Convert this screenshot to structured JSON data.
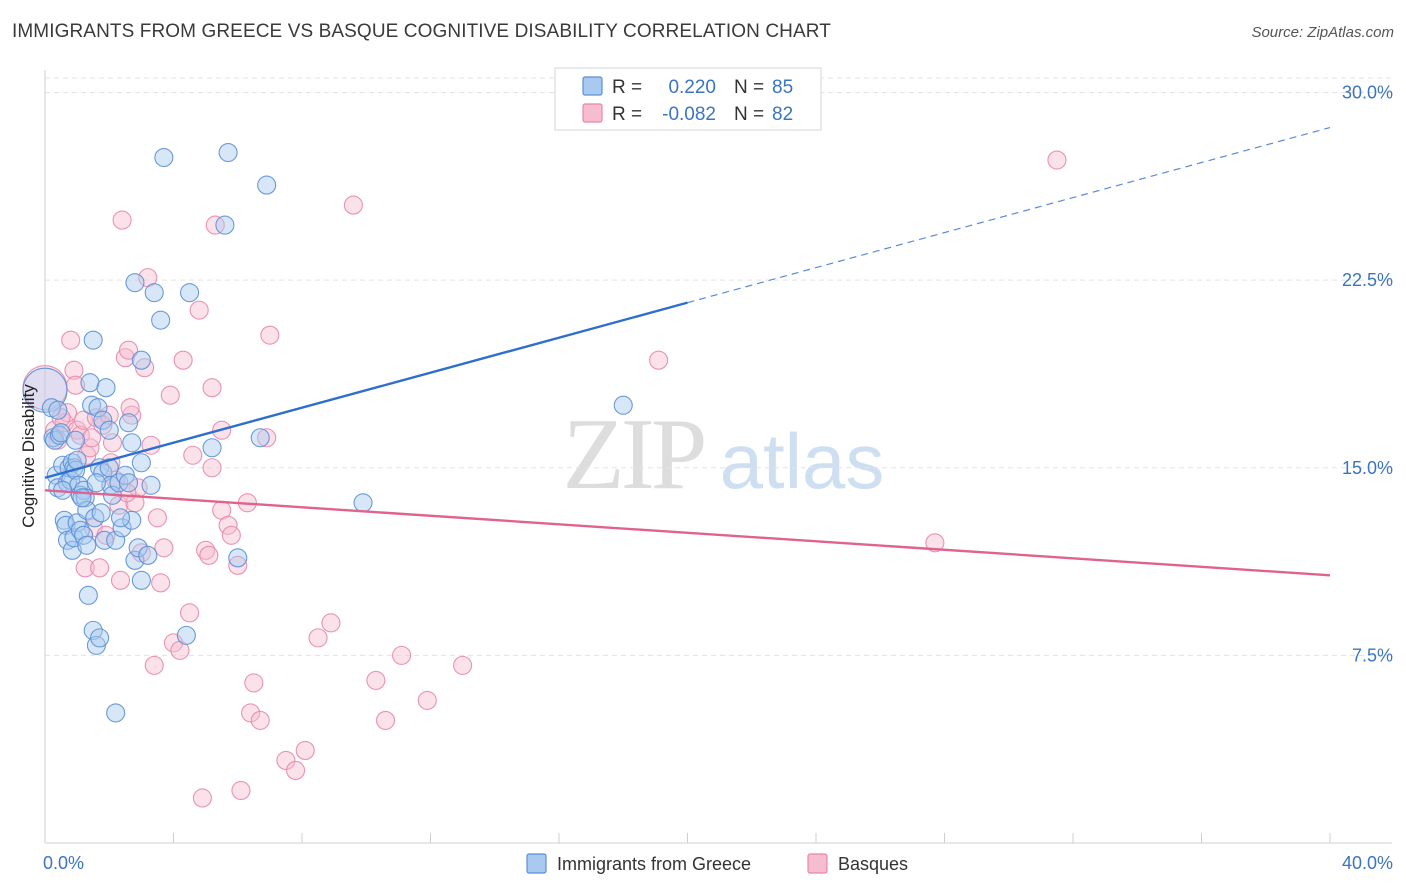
{
  "title": "IMMIGRANTS FROM GREECE VS BASQUE COGNITIVE DISABILITY CORRELATION CHART",
  "source": "Source: ZipAtlas.com",
  "colors": {
    "blue_fill": "#a9c9f0",
    "blue_stroke": "#5b8fd6",
    "blue_line": "#2e6fce",
    "pink_fill": "#f6bcd0",
    "pink_stroke": "#e888aa",
    "pink_line": "#e0628f",
    "grid": "#e3e3e3",
    "axis_text": "#3b74c4"
  },
  "stats": {
    "row1": {
      "r_label": "R =",
      "r_value": "0.220",
      "n_label": "N =",
      "n_value": "85"
    },
    "row2": {
      "r_label": "R =",
      "r_value": "-0.082",
      "n_label": "N =",
      "n_value": "82"
    }
  },
  "watermark": {
    "zip": "ZIP",
    "atlas": "atlas"
  },
  "chart_data": {
    "type": "scatter",
    "title": "IMMIGRANTS FROM GREECE VS BASQUE COGNITIVE DISABILITY CORRELATION CHART",
    "xlabel": "",
    "ylabel": "Cognitive Disability",
    "xlim": [
      0,
      40
    ],
    "ylim": [
      0,
      30.9
    ],
    "x_tick_labels": [
      "0.0%",
      "40.0%"
    ],
    "y_ticks": [
      7.5,
      15.0,
      22.5,
      30.0
    ],
    "y_tick_labels": [
      "7.5%",
      "15.0%",
      "22.5%",
      "30.0%"
    ],
    "grid": true,
    "legend": [
      "Immigrants from Greece",
      "Basques"
    ],
    "series": [
      {
        "name": "Immigrants from Greece",
        "color": "blue",
        "trend": {
          "x0": 0.0,
          "y0": 14.6,
          "x1": 20.0,
          "y1": 21.6,
          "dashed_to_x": 40.0,
          "dashed_to_y": 28.6
        },
        "points": [
          [
            0.0,
            18.1,
            1
          ],
          [
            0.2,
            17.4,
            0
          ],
          [
            0.25,
            16.2,
            0
          ],
          [
            0.3,
            16.1,
            0
          ],
          [
            0.35,
            14.7,
            0
          ],
          [
            0.4,
            14.2,
            0
          ],
          [
            0.45,
            16.3,
            0
          ],
          [
            0.5,
            16.4,
            0
          ],
          [
            0.55,
            15.1,
            0
          ],
          [
            0.6,
            12.9,
            0
          ],
          [
            0.65,
            12.7,
            0
          ],
          [
            0.7,
            14.4,
            0
          ],
          [
            0.7,
            12.1,
            0
          ],
          [
            0.75,
            15.0,
            0
          ],
          [
            0.8,
            14.5,
            0
          ],
          [
            0.85,
            15.2,
            0
          ],
          [
            0.85,
            11.7,
            0
          ],
          [
            0.9,
            15.0,
            0
          ],
          [
            0.9,
            12.2,
            0
          ],
          [
            0.95,
            14.9,
            0
          ],
          [
            1.0,
            15.3,
            0
          ],
          [
            1.0,
            12.8,
            0
          ],
          [
            1.05,
            14.3,
            0
          ],
          [
            1.1,
            13.9,
            0
          ],
          [
            1.1,
            12.5,
            0
          ],
          [
            1.2,
            14.1,
            0
          ],
          [
            1.2,
            12.3,
            0
          ],
          [
            1.25,
            13.8,
            0
          ],
          [
            1.3,
            13.3,
            0
          ],
          [
            1.35,
            9.9,
            0
          ],
          [
            1.4,
            18.4,
            0
          ],
          [
            1.45,
            17.5,
            0
          ],
          [
            1.5,
            20.1,
            0
          ],
          [
            1.5,
            8.5,
            0
          ],
          [
            1.55,
            13.0,
            0
          ],
          [
            1.6,
            7.9,
            0
          ],
          [
            1.65,
            17.4,
            0
          ],
          [
            1.7,
            15.0,
            0
          ],
          [
            1.7,
            8.2,
            0
          ],
          [
            1.75,
            13.2,
            0
          ],
          [
            1.8,
            14.8,
            0
          ],
          [
            1.8,
            16.9,
            0
          ],
          [
            1.85,
            12.1,
            0
          ],
          [
            1.9,
            18.2,
            0
          ],
          [
            2.0,
            15.0,
            0
          ],
          [
            2.0,
            16.5,
            0
          ],
          [
            2.05,
            14.3,
            0
          ],
          [
            2.1,
            13.9,
            0
          ],
          [
            2.2,
            12.1,
            0
          ],
          [
            2.2,
            5.2,
            0
          ],
          [
            2.3,
            14.4,
            0
          ],
          [
            2.4,
            12.6,
            0
          ],
          [
            2.5,
            14.7,
            0
          ],
          [
            2.6,
            14.4,
            0
          ],
          [
            2.6,
            16.8,
            0
          ],
          [
            2.7,
            16.0,
            0
          ],
          [
            2.7,
            12.9,
            0
          ],
          [
            2.8,
            11.3,
            0
          ],
          [
            2.8,
            22.4,
            0
          ],
          [
            2.9,
            11.8,
            0
          ],
          [
            3.0,
            19.3,
            0
          ],
          [
            3.0,
            10.5,
            0
          ],
          [
            3.2,
            11.5,
            0
          ],
          [
            3.3,
            14.3,
            0
          ],
          [
            3.4,
            22.0,
            0
          ],
          [
            3.6,
            20.9,
            0
          ],
          [
            3.7,
            27.4,
            0
          ],
          [
            4.4,
            8.3,
            0
          ],
          [
            4.5,
            22.0,
            0
          ],
          [
            5.2,
            15.8,
            0
          ],
          [
            5.6,
            24.7,
            0
          ],
          [
            5.7,
            27.6,
            0
          ],
          [
            6.0,
            11.4,
            0
          ],
          [
            6.7,
            16.2,
            0
          ],
          [
            6.9,
            26.3,
            0
          ],
          [
            9.9,
            13.6,
            0
          ],
          [
            18.0,
            17.5,
            0
          ],
          [
            3.0,
            15.2,
            0
          ],
          [
            1.15,
            13.8,
            0
          ],
          [
            0.55,
            14.1,
            0
          ],
          [
            0.95,
            16.1,
            0
          ],
          [
            1.6,
            14.4,
            0
          ],
          [
            2.35,
            13.0,
            0
          ],
          [
            0.4,
            17.3,
            0
          ],
          [
            1.3,
            11.9,
            0
          ]
        ]
      },
      {
        "name": "Basques",
        "color": "pink",
        "trend": {
          "x0": 0.0,
          "y0": 14.1,
          "x1": 40.0,
          "y1": 10.7
        },
        "points": [
          [
            0.0,
            18.2,
            1
          ],
          [
            0.3,
            16.5,
            0
          ],
          [
            0.4,
            16.1,
            0
          ],
          [
            0.6,
            16.8,
            0
          ],
          [
            0.7,
            17.2,
            0
          ],
          [
            0.8,
            20.1,
            0
          ],
          [
            0.9,
            18.9,
            0
          ],
          [
            1.0,
            16.5,
            0
          ],
          [
            1.1,
            16.3,
            0
          ],
          [
            1.2,
            16.9,
            0
          ],
          [
            1.25,
            11.0,
            0
          ],
          [
            1.3,
            15.5,
            0
          ],
          [
            1.4,
            15.8,
            0
          ],
          [
            1.5,
            12.6,
            0
          ],
          [
            1.6,
            17.0,
            0
          ],
          [
            1.7,
            11.0,
            0
          ],
          [
            1.8,
            16.7,
            0
          ],
          [
            1.9,
            12.3,
            0
          ],
          [
            2.0,
            17.1,
            0
          ],
          [
            2.05,
            15.2,
            0
          ],
          [
            2.1,
            16.0,
            0
          ],
          [
            2.2,
            14.5,
            0
          ],
          [
            2.3,
            13.5,
            0
          ],
          [
            2.35,
            10.5,
            0
          ],
          [
            2.4,
            24.9,
            0
          ],
          [
            2.5,
            19.4,
            0
          ],
          [
            2.6,
            19.7,
            0
          ],
          [
            2.7,
            17.1,
            0
          ],
          [
            2.8,
            13.6,
            0
          ],
          [
            2.9,
            14.2,
            0
          ],
          [
            3.0,
            11.6,
            0
          ],
          [
            3.1,
            19.0,
            0
          ],
          [
            3.2,
            22.6,
            0
          ],
          [
            3.3,
            15.9,
            0
          ],
          [
            3.4,
            7.1,
            0
          ],
          [
            3.6,
            10.4,
            0
          ],
          [
            3.7,
            11.8,
            0
          ],
          [
            3.9,
            17.9,
            0
          ],
          [
            4.0,
            8.0,
            0
          ],
          [
            4.2,
            7.7,
            0
          ],
          [
            4.3,
            19.3,
            0
          ],
          [
            4.5,
            9.2,
            0
          ],
          [
            4.6,
            15.5,
            0
          ],
          [
            4.8,
            21.3,
            0
          ],
          [
            4.9,
            1.8,
            0
          ],
          [
            5.0,
            11.7,
            0
          ],
          [
            5.1,
            11.5,
            0
          ],
          [
            5.2,
            18.2,
            0
          ],
          [
            5.2,
            15.0,
            0
          ],
          [
            5.3,
            24.7,
            0
          ],
          [
            5.5,
            16.5,
            0
          ],
          [
            5.5,
            13.3,
            0
          ],
          [
            5.7,
            12.7,
            0
          ],
          [
            5.8,
            12.3,
            0
          ],
          [
            6.0,
            11.1,
            0
          ],
          [
            6.1,
            2.1,
            0
          ],
          [
            6.3,
            13.6,
            0
          ],
          [
            6.4,
            5.2,
            0
          ],
          [
            6.5,
            6.4,
            0
          ],
          [
            6.7,
            4.9,
            0
          ],
          [
            6.9,
            16.2,
            0
          ],
          [
            7.0,
            20.3,
            0
          ],
          [
            7.5,
            3.3,
            0
          ],
          [
            7.8,
            2.9,
            0
          ],
          [
            8.1,
            3.7,
            0
          ],
          [
            8.5,
            8.2,
            0
          ],
          [
            8.9,
            8.8,
            0
          ],
          [
            9.6,
            25.5,
            0
          ],
          [
            10.3,
            6.5,
            0
          ],
          [
            10.6,
            4.9,
            0
          ],
          [
            11.1,
            7.5,
            0
          ],
          [
            11.9,
            5.7,
            0
          ],
          [
            13.0,
            7.1,
            0
          ],
          [
            19.1,
            19.3,
            0
          ],
          [
            27.7,
            12.0,
            0
          ],
          [
            31.5,
            27.3,
            0
          ],
          [
            0.5,
            17.0,
            0
          ],
          [
            1.45,
            16.2,
            0
          ],
          [
            2.55,
            14.0,
            0
          ],
          [
            3.5,
            13.0,
            0
          ],
          [
            0.95,
            18.3,
            0
          ],
          [
            2.65,
            17.4,
            0
          ]
        ]
      }
    ]
  }
}
